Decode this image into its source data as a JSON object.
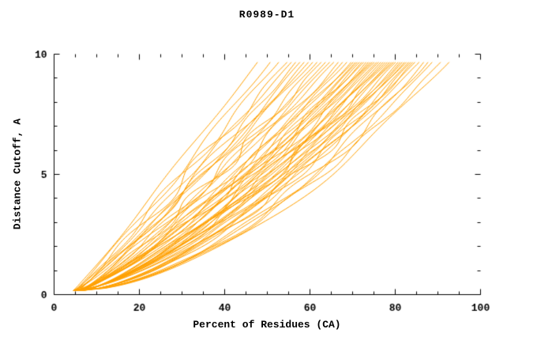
{
  "chart_data": {
    "type": "line",
    "title": "R0989-D1",
    "xlabel": "Percent of Residues (CA)",
    "ylabel": "Distance Cutoff, A",
    "xlim": [
      0,
      100
    ],
    "ylim": [
      0,
      10
    ],
    "x_ticks": [
      0,
      20,
      40,
      60,
      80,
      100
    ],
    "y_ticks": [
      0,
      5,
      10
    ],
    "x_minor_step": 5,
    "y_minor_step": 1,
    "grid": false,
    "legend": "none",
    "line_color": "#FFA000",
    "axis_color": "#000000",
    "y_start": 0.15,
    "y_end": 9.7,
    "series_format": [
      "x_start",
      "x_end",
      "shape_exponent",
      "wiggle_amp",
      "wiggle_freq",
      "wiggle_phase"
    ],
    "series": [
      [
        4.6,
        48,
        0.96,
        0.6,
        0.9,
        0
      ],
      [
        4.95,
        51,
        0.95,
        1.1,
        1.2,
        2.4
      ],
      [
        5.3,
        53,
        0.95,
        1.6,
        1.5,
        4.8
      ],
      [
        5.65,
        55,
        0.95,
        2.1,
        1.8,
        7.2
      ],
      [
        6.0,
        56,
        0.96,
        0.6,
        2.1,
        9.6
      ],
      [
        6.35,
        57,
        0.87,
        1.1,
        2.4,
        12
      ],
      [
        6.7,
        58,
        0.88,
        1.6,
        0.9,
        14.4
      ],
      [
        4.6,
        59,
        0.89,
        2.1,
        1.2,
        16.8
      ],
      [
        4.95,
        60,
        0.9,
        0.6,
        1.5,
        19.2
      ],
      [
        5.3,
        61,
        0.91,
        1.1,
        1.8,
        21.6
      ],
      [
        5.65,
        62,
        0.82,
        1.6,
        2.1,
        24
      ],
      [
        6.0,
        63,
        0.83,
        2.1,
        2.4,
        26.4
      ],
      [
        6.35,
        64,
        0.84,
        0.6,
        0.9,
        28.8
      ],
      [
        6.7,
        65,
        0.85,
        1.1,
        1.2,
        31.2
      ],
      [
        4.6,
        66,
        0.86,
        1.6,
        1.5,
        33.6
      ],
      [
        4.95,
        67,
        0.77,
        2.1,
        1.8,
        36
      ],
      [
        5.3,
        68,
        0.78,
        0.6,
        2.1,
        38.4
      ],
      [
        5.65,
        69,
        0.79,
        1.1,
        2.4,
        40.8
      ],
      [
        6.0,
        70,
        0.8,
        1.6,
        0.9,
        43.2
      ],
      [
        6.35,
        70.5,
        0.815,
        2.1,
        1.2,
        45.6
      ],
      [
        6.7,
        71,
        0.73,
        0.6,
        1.5,
        48
      ],
      [
        4.6,
        71.5,
        0.745,
        1.1,
        1.8,
        50.4
      ],
      [
        4.95,
        72,
        0.76,
        1.6,
        2.1,
        52.8
      ],
      [
        5.3,
        72.5,
        0.775,
        2.1,
        2.4,
        55.2
      ],
      [
        5.65,
        73,
        0.79,
        0.6,
        0.9,
        57.6
      ],
      [
        6.0,
        73.5,
        0.705,
        1.1,
        1.2,
        60
      ],
      [
        6.35,
        74,
        0.72,
        1.6,
        1.5,
        62.4
      ],
      [
        6.7,
        74.5,
        0.735,
        2.1,
        1.8,
        64.8
      ],
      [
        4.6,
        75,
        0.75,
        0.6,
        2.1,
        67.2
      ],
      [
        4.95,
        75.5,
        0.765,
        1.1,
        2.4,
        69.6
      ],
      [
        5.3,
        76,
        0.68,
        1.6,
        0.9,
        72
      ],
      [
        5.65,
        76.5,
        0.695,
        2.1,
        1.2,
        74.4
      ],
      [
        6.0,
        77,
        0.71,
        0.6,
        1.5,
        76.8
      ],
      [
        6.35,
        77.5,
        0.725,
        1.1,
        1.8,
        79.2
      ],
      [
        6.7,
        78,
        0.74,
        1.6,
        2.1,
        81.6
      ],
      [
        4.6,
        78.5,
        0.655,
        2.1,
        2.4,
        84
      ],
      [
        4.95,
        79,
        0.67,
        0.6,
        0.9,
        86.4
      ],
      [
        5.3,
        79.5,
        0.685,
        1.1,
        1.2,
        88.8
      ],
      [
        5.65,
        80,
        0.7,
        1.6,
        1.5,
        91.2
      ],
      [
        6.0,
        80.5,
        0.715,
        2.1,
        1.8,
        93.6
      ],
      [
        6.35,
        81,
        0.63,
        0.6,
        2.1,
        96
      ],
      [
        6.7,
        81.5,
        0.645,
        1.1,
        2.4,
        98.4
      ],
      [
        4.6,
        82,
        0.66,
        1.6,
        0.9,
        100.8
      ],
      [
        4.95,
        82.5,
        0.675,
        2.1,
        1.2,
        103.2
      ],
      [
        5.3,
        83,
        0.69,
        0.6,
        1.5,
        105.6
      ],
      [
        5.65,
        83.5,
        0.605,
        1.1,
        1.8,
        108
      ],
      [
        6.0,
        84,
        0.62,
        1.6,
        2.1,
        110.4
      ],
      [
        6.35,
        84.5,
        0.635,
        2.1,
        2.4,
        112.8
      ],
      [
        6.7,
        85,
        0.65,
        0.6,
        0.9,
        115.2
      ],
      [
        4.6,
        86,
        0.66,
        1.1,
        1.2,
        117.6
      ],
      [
        4.95,
        87,
        0.57,
        1.6,
        1.5,
        120
      ],
      [
        5.3,
        88,
        0.58,
        2.1,
        1.8,
        122.4
      ],
      [
        5.65,
        89,
        0.59,
        0.6,
        2.1,
        124.8
      ],
      [
        6.0,
        91,
        0.59,
        1.1,
        2.4,
        127.2
      ],
      [
        6.35,
        93,
        0.59,
        1.6,
        0.9,
        129.6
      ]
    ]
  }
}
